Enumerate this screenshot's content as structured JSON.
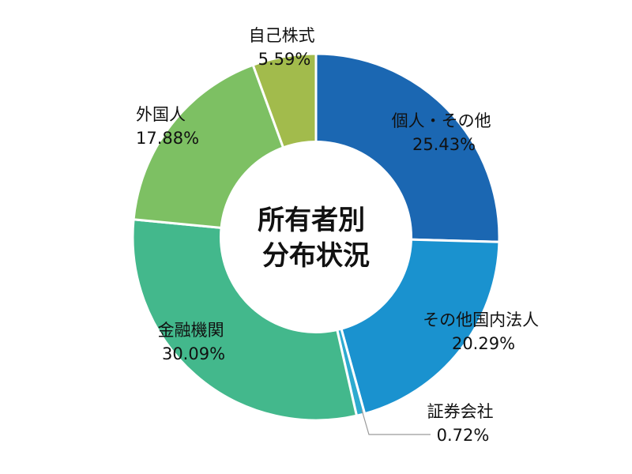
{
  "chart_data": {
    "type": "pie",
    "title": "所有者別\n分布状況",
    "title_lines": [
      "所有者別",
      "分布状況"
    ],
    "slices": [
      {
        "name": "個人・その他",
        "value": 25.43,
        "label": "25.43%",
        "color": "#1b67b2"
      },
      {
        "name": "その他国内法人",
        "value": 20.29,
        "label": "20.29%",
        "color": "#1a92cf"
      },
      {
        "name": "証券会社",
        "value": 0.72,
        "label": "0.72%",
        "color": "#2eaacf"
      },
      {
        "name": "金融機関",
        "value": 30.09,
        "label": "30.09%",
        "color": "#43b88c"
      },
      {
        "name": "外国人",
        "value": 17.88,
        "label": "17.88%",
        "color": "#7dc063"
      },
      {
        "name": "自己株式",
        "value": 5.59,
        "label": "5.59%",
        "color": "#a2bb4c"
      }
    ],
    "start": "12 o'clock",
    "direction": "clockwise",
    "donut": true
  }
}
